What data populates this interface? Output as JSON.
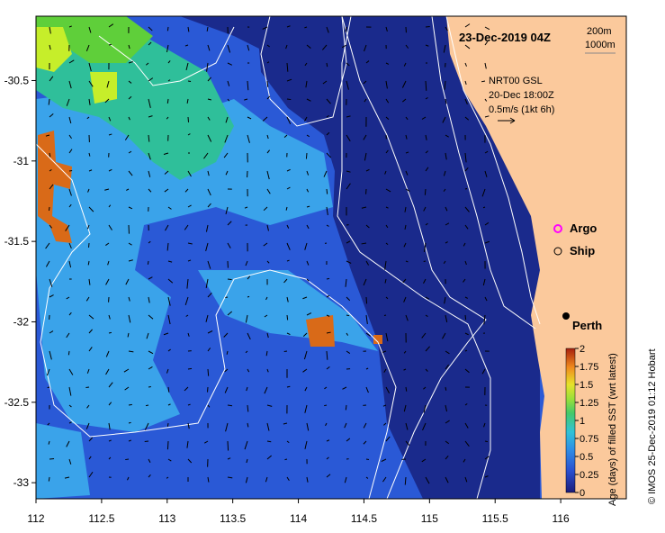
{
  "title": "23-Dec-2019 04Z",
  "scale_labels": [
    "200m",
    "1000m"
  ],
  "currents": {
    "product": "NRT00 GSL",
    "time": "20-Dec 18:00Z",
    "scale": "0.5m/s (1kt 6h)"
  },
  "legend": {
    "argo": "Argo",
    "ship": "Ship"
  },
  "city": "Perth",
  "credit": "© IMOS 25-Dec-2019 01:12 Hobart",
  "colorbar": {
    "label": "Age (days) of filled SST (wrt latest)",
    "ticks": [
      "0",
      "0.25",
      "0.5",
      "0.75",
      "1",
      "1.25",
      "1.5",
      "1.75",
      "2"
    ],
    "range": [
      0,
      2
    ]
  },
  "axes": {
    "x_ticks": [
      "112",
      "112.5",
      "113",
      "113.5",
      "114",
      "114.5",
      "115",
      "115.5",
      "116"
    ],
    "y_ticks": [
      "-30.5",
      "-31",
      "-31.5",
      "-32",
      "-32.5",
      "-33"
    ],
    "x_range": [
      112,
      116.5
    ],
    "y_range": [
      -33.1,
      -30.1
    ]
  },
  "colors": {
    "land": "#fbc99c",
    "deep": "#1a2a8c",
    "mid": "#2a59d6",
    "light": "#3aa3ea",
    "teal": "#2fbf9a",
    "green": "#5fcf3a",
    "lime": "#c6ee2a",
    "orange": "#d96a18",
    "argo": "#ff00ff"
  }
}
